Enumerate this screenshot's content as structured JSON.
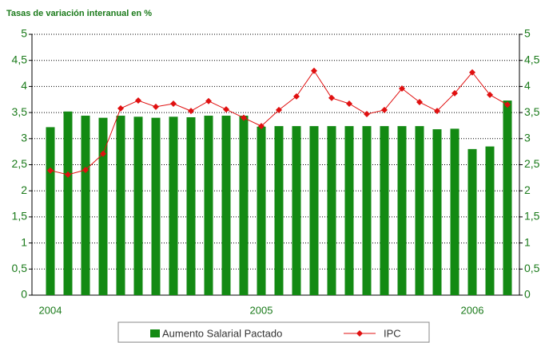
{
  "chart_data": {
    "type": "bar_line",
    "title": "Tasas de variación interanual en %",
    "categories": [
      "2004",
      null,
      null,
      null,
      null,
      null,
      null,
      null,
      null,
      null,
      null,
      null,
      "2005",
      null,
      null,
      null,
      null,
      null,
      null,
      null,
      null,
      null,
      null,
      null,
      "2006",
      null,
      null
    ],
    "series": [
      {
        "name": "Aumento Salarial Pactado",
        "type": "bar",
        "color": "#138a13",
        "values": [
          3.22,
          3.52,
          3.44,
          3.4,
          3.44,
          3.42,
          3.4,
          3.42,
          3.41,
          3.44,
          3.44,
          3.44,
          3.23,
          3.24,
          3.24,
          3.24,
          3.24,
          3.24,
          3.24,
          3.24,
          3.24,
          3.24,
          3.18,
          3.19,
          2.8,
          2.85,
          3.73
        ]
      },
      {
        "name": "IPC",
        "type": "line",
        "color": "#e01010",
        "values": [
          2.39,
          2.31,
          2.4,
          2.71,
          3.58,
          3.73,
          3.61,
          3.67,
          3.53,
          3.72,
          3.56,
          3.4,
          3.24,
          3.55,
          3.81,
          4.3,
          3.78,
          3.67,
          3.47,
          3.55,
          3.96,
          3.7,
          3.53,
          3.87,
          4.27,
          3.84,
          3.65
        ]
      }
    ],
    "ylim": [
      0,
      5
    ],
    "yticks": [
      0,
      {
        "value": 0.5,
        "label": "0,5"
      },
      1,
      {
        "value": 1.5,
        "label": "1,5"
      },
      2,
      {
        "value": 2.5,
        "label": "2,5"
      },
      3,
      {
        "value": 3.5,
        "label": "3,5"
      },
      4,
      {
        "value": 4.5,
        "label": "4,5"
      },
      5
    ],
    "y2lim": [
      0,
      5
    ],
    "y2ticks": [
      0,
      {
        "value": 0.5,
        "label": "0,5"
      },
      1,
      {
        "value": 1.5,
        "label": "1,5"
      },
      2,
      {
        "value": 2.5,
        "label": "2,5"
      },
      3,
      {
        "value": 3.5,
        "label": "3,5"
      },
      4,
      {
        "value": 4.5,
        "label": "4,5"
      },
      5
    ],
    "grid": true,
    "legend": "bottom"
  }
}
